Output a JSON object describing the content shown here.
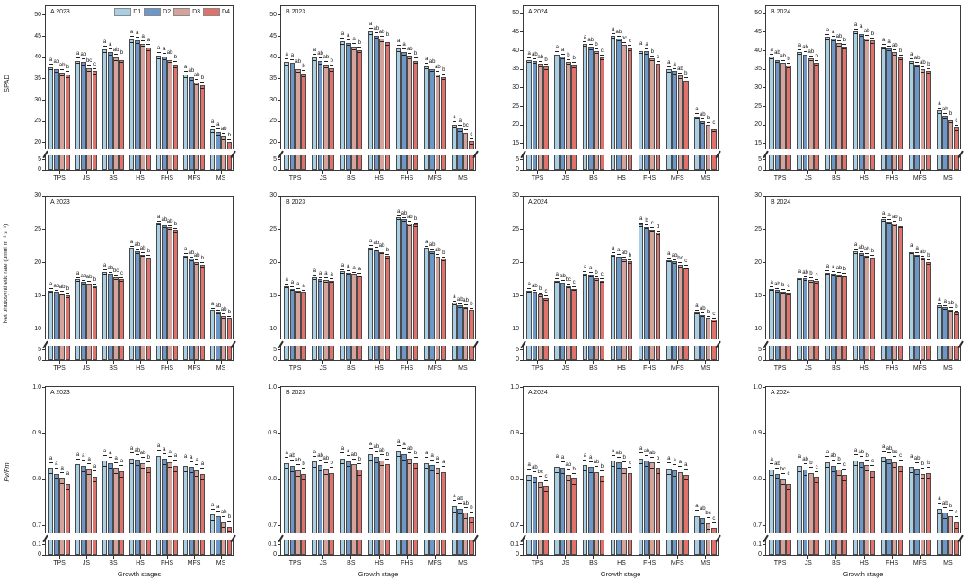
{
  "legend": {
    "labels": [
      "D1",
      "D2",
      "D3",
      "D4"
    ],
    "colors": [
      "#a9cfe5",
      "#6d96c9",
      "#d6a29c",
      "#e1716b"
    ]
  },
  "stages": [
    "TPS",
    "JS",
    "BS",
    "HS",
    "FHS",
    "MFS",
    "MS"
  ],
  "rows": [
    {
      "ylabel": "SPAD",
      "err": 0.8,
      "ticks_lower": [
        [
          0,
          "0"
        ],
        [
          5,
          "5"
        ]
      ],
      "ticks_upper": [
        [
          20,
          "20"
        ],
        [
          25,
          "25"
        ],
        [
          30,
          "30"
        ],
        [
          35,
          "35"
        ],
        [
          40,
          "40"
        ],
        [
          45,
          "45"
        ],
        [
          50,
          "50"
        ]
      ],
      "ymap": {
        "lo": 7,
        "u0": 18.5,
        "u1": 52.5
      }
    },
    {
      "ylabel": "Net photosynthetic rate (μmol m⁻² s⁻¹)",
      "err": 0.35,
      "ticks_lower": [
        [
          0,
          "0"
        ],
        [
          5,
          "5"
        ]
      ],
      "ticks_upper": [
        [
          10,
          "10"
        ],
        [
          15,
          "15"
        ],
        [
          20,
          "20"
        ],
        [
          25,
          "25"
        ],
        [
          30,
          "30"
        ]
      ],
      "ymap": {
        "lo": 7,
        "u0": 8.5,
        "u1": 30.2
      }
    },
    {
      "ylabel": "Fv/Fm",
      "err": 0.013,
      "ticks_lower": [
        [
          0,
          "0"
        ],
        [
          0.1,
          "0.1"
        ]
      ],
      "ticks_upper": [
        [
          0.7,
          "0.7"
        ],
        [
          0.8,
          "0.8"
        ],
        [
          0.9,
          "0.9"
        ],
        [
          1.0,
          "1.0"
        ]
      ],
      "ymap": {
        "lo": 0.14,
        "u0": 0.683,
        "u1": 1.005
      }
    }
  ],
  "chart_data": [
    {
      "type": "bar",
      "row": 0,
      "title": "A 2023",
      "legend": true,
      "xtitle": null,
      "groups": [
        [
          37.8,
          37.3,
          36.5,
          36.0
        ],
        [
          39.3,
          39.0,
          37.5,
          36.8
        ],
        [
          42.0,
          41.3,
          40.0,
          39.5
        ],
        [
          44.3,
          44.0,
          43.3,
          42.4
        ],
        [
          40.5,
          40.2,
          39.5,
          38.3
        ],
        [
          36.0,
          35.3,
          34.2,
          33.5
        ],
        [
          23.2,
          22.5,
          21.5,
          20.1
        ]
      ],
      "letters": [
        [
          "a",
          "ab",
          "ab",
          "b"
        ],
        [
          "a",
          "ab",
          "bc",
          "c"
        ],
        [
          "a",
          "a",
          "ab",
          "b"
        ],
        [
          "a",
          "a",
          "a",
          "a"
        ],
        [
          "a",
          "a",
          "ab",
          "b"
        ],
        [
          "a",
          "ab",
          "ab",
          "b"
        ],
        [
          "a",
          "a",
          "ab",
          "b"
        ]
      ]
    },
    {
      "type": "bar",
      "row": 0,
      "title": "B 2023",
      "legend": false,
      "xtitle": null,
      "groups": [
        [
          39.0,
          38.8,
          37.3,
          36.3
        ],
        [
          40.0,
          39.2,
          38.3,
          37.5
        ],
        [
          43.8,
          43.5,
          42.6,
          41.8
        ],
        [
          46.2,
          45.2,
          44.4,
          43.6
        ],
        [
          42.2,
          41.3,
          40.4,
          39.3
        ],
        [
          38.0,
          37.4,
          36.1,
          35.5
        ],
        [
          24.2,
          23.4,
          22.3,
          20.3
        ]
      ],
      "letters": [
        [
          "a",
          "a",
          "ab",
          "b"
        ],
        [
          "a",
          "ab",
          "ab",
          "b"
        ],
        [
          "a",
          "a",
          "a",
          "b"
        ],
        [
          "a",
          "ab",
          "ab",
          "b"
        ],
        [
          "a",
          "a",
          "ab",
          "b"
        ],
        [
          "a",
          "ab",
          "ab",
          "b"
        ],
        [
          "a",
          "a",
          "bc",
          "c"
        ]
      ]
    },
    {
      "type": "bar",
      "row": 0,
      "title": "A 2024",
      "legend": false,
      "xtitle": null,
      "ticks_upper": [
        [
          15,
          "15"
        ],
        [
          20,
          "20"
        ],
        [
          25,
          "25"
        ],
        [
          30,
          "30"
        ],
        [
          35,
          "35"
        ],
        [
          40,
          "40"
        ],
        [
          45,
          "45"
        ],
        [
          50,
          "50"
        ]
      ],
      "ymap": {
        "lo": 7,
        "u0": 13.5,
        "u1": 52.5
      },
      "groups": [
        [
          37.5,
          37.2,
          36.4,
          35.7
        ],
        [
          39.0,
          38.5,
          37.0,
          36.2
        ],
        [
          41.8,
          41.0,
          39.9,
          38.2
        ],
        [
          44.0,
          43.3,
          41.5,
          40.7
        ],
        [
          40.0,
          39.8,
          38.0,
          36.5
        ],
        [
          35.0,
          34.5,
          33.3,
          32.0
        ],
        [
          22.3,
          21.0,
          20.0,
          18.8
        ]
      ],
      "letters": [
        [
          "a",
          "ab",
          "ab",
          "b"
        ],
        [
          "a",
          "a",
          "b",
          "b"
        ],
        [
          "a",
          "ab",
          "b",
          "c"
        ],
        [
          "a",
          "ab",
          "bc",
          "c"
        ],
        [
          "a",
          "a",
          "b",
          "c"
        ],
        [
          "a",
          "a",
          "ab",
          "b"
        ],
        [
          "a",
          "ab",
          "b",
          "c"
        ]
      ]
    },
    {
      "type": "bar",
      "row": 0,
      "title": "B 2024",
      "legend": false,
      "xtitle": null,
      "ticks_upper": [
        [
          15,
          "15"
        ],
        [
          20,
          "20"
        ],
        [
          25,
          "25"
        ],
        [
          30,
          "30"
        ],
        [
          35,
          "35"
        ],
        [
          40,
          "40"
        ],
        [
          45,
          "45"
        ],
        [
          50,
          "50"
        ]
      ],
      "ymap": {
        "lo": 7,
        "u0": 13.5,
        "u1": 52.5
      },
      "groups": [
        [
          38.5,
          37.6,
          36.7,
          36.0
        ],
        [
          39.7,
          39.0,
          38.0,
          36.8
        ],
        [
          43.7,
          43.3,
          42.0,
          41.1
        ],
        [
          45.2,
          44.6,
          43.4,
          42.7
        ],
        [
          41.1,
          40.6,
          39.6,
          38.2
        ],
        [
          37.2,
          36.3,
          35.0,
          34.6
        ],
        [
          23.8,
          22.4,
          21.3,
          19.2
        ]
      ],
      "letters": [
        [
          "a",
          "ab",
          "ab",
          "b"
        ],
        [
          "a",
          "ab",
          "ab",
          "b"
        ],
        [
          "a",
          "a",
          "ab",
          "b"
        ],
        [
          "a",
          "a",
          "ab",
          "b"
        ],
        [
          "a",
          "a",
          "ab",
          "b"
        ],
        [
          "a",
          "ab",
          "ab",
          "b"
        ],
        [
          "a",
          "ab",
          "b",
          "c"
        ]
      ]
    },
    {
      "type": "bar",
      "row": 1,
      "title": "A 2023",
      "legend": false,
      "xtitle": null,
      "groups": [
        [
          15.8,
          15.6,
          15.4,
          15.1
        ],
        [
          17.5,
          17.1,
          16.9,
          16.5
        ],
        [
          18.6,
          18.3,
          17.8,
          17.5
        ],
        [
          22.2,
          21.7,
          21.2,
          20.8
        ],
        [
          26.0,
          25.6,
          25.3,
          24.9
        ],
        [
          21.1,
          20.6,
          20.1,
          19.7
        ],
        [
          12.9,
          12.6,
          12.0,
          11.7
        ]
      ],
      "letters": [
        [
          "a",
          "ab",
          "ab",
          "b"
        ],
        [
          "a",
          "ab",
          "ab",
          "b"
        ],
        [
          "a",
          "ab",
          "bc",
          "c"
        ],
        [
          "a",
          "ab",
          "ab",
          "b"
        ],
        [
          "a",
          "ab",
          "ab",
          "b"
        ],
        [
          "a",
          "ab",
          "ab",
          "b"
        ],
        [
          "a",
          "ab",
          "ab",
          "b"
        ]
      ]
    },
    {
      "type": "bar",
      "row": 1,
      "title": "B 2023",
      "legend": false,
      "xtitle": null,
      "groups": [
        [
          16.5,
          16.1,
          15.8,
          15.6
        ],
        [
          17.8,
          17.5,
          17.4,
          17.3
        ],
        [
          18.7,
          18.5,
          18.3,
          18.1
        ],
        [
          22.3,
          22.0,
          21.6,
          21.0
        ],
        [
          26.8,
          26.5,
          25.9,
          25.7
        ],
        [
          22.2,
          21.7,
          20.9,
          20.6
        ],
        [
          14.0,
          13.6,
          13.4,
          12.9
        ]
      ],
      "letters": [
        [
          "a",
          "a",
          "a",
          "a"
        ],
        [
          "a",
          "a",
          "a",
          "a"
        ],
        [
          "a",
          "a",
          "a",
          "a"
        ],
        [
          "a",
          "ab",
          "ab",
          "b"
        ],
        [
          "a",
          "ab",
          "ab",
          "b"
        ],
        [
          "a",
          "ab",
          "ab",
          "b"
        ],
        [
          "a",
          "ab",
          "ab",
          "b"
        ]
      ]
    },
    {
      "type": "bar",
      "row": 1,
      "title": "A 2024",
      "legend": false,
      "xtitle": null,
      "groups": [
        [
          15.8,
          15.6,
          15.2,
          14.7
        ],
        [
          17.3,
          17.0,
          16.5,
          16.1
        ],
        [
          18.4,
          18.2,
          17.6,
          17.3
        ],
        [
          21.2,
          20.9,
          20.5,
          20.2
        ],
        [
          25.7,
          25.4,
          25.0,
          24.5
        ],
        [
          20.4,
          20.2,
          19.7,
          19.3
        ],
        [
          12.6,
          12.2,
          11.7,
          11.4
        ]
      ],
      "letters": [
        [
          "a",
          "ab",
          "b",
          "c"
        ],
        [
          "a",
          "ab",
          "bc",
          "c"
        ],
        [
          "a",
          "a",
          "b",
          "c"
        ],
        [
          "a",
          "a",
          "ab",
          "b"
        ],
        [
          "a",
          "b",
          "c",
          "d"
        ],
        [
          "a",
          "ab",
          "bc",
          "c"
        ],
        [
          "a",
          "ab",
          "b",
          "c"
        ]
      ]
    },
    {
      "type": "bar",
      "row": 1,
      "title": "B 2024",
      "legend": false,
      "xtitle": null,
      "groups": [
        [
          16.1,
          15.9,
          15.7,
          15.5
        ],
        [
          17.7,
          17.6,
          17.4,
          17.2
        ],
        [
          18.5,
          18.4,
          18.2,
          18.1
        ],
        [
          21.7,
          21.4,
          21.1,
          20.8
        ],
        [
          26.5,
          26.2,
          25.9,
          25.5
        ],
        [
          21.6,
          21.2,
          20.7,
          20.1
        ],
        [
          13.6,
          13.3,
          13.0,
          12.5
        ]
      ],
      "letters": [
        [
          "a",
          "ab",
          "b",
          "c"
        ],
        [
          "a",
          "ab",
          "b",
          "c"
        ],
        [
          "a",
          "a",
          "ab",
          "b"
        ],
        [
          "a",
          "ab",
          "ab",
          "b"
        ],
        [
          "a",
          "a",
          "ab",
          "b"
        ],
        [
          "a",
          "a",
          "ab",
          "b"
        ],
        [
          "a",
          "a",
          "ab",
          "b"
        ]
      ]
    },
    {
      "type": "bar",
      "row": 2,
      "title": "A 2023",
      "legend": false,
      "xtitle": "Growth stages",
      "groups": [
        [
          0.825,
          0.813,
          0.803,
          0.791
        ],
        [
          0.833,
          0.83,
          0.823,
          0.807
        ],
        [
          0.841,
          0.836,
          0.825,
          0.818
        ],
        [
          0.846,
          0.843,
          0.836,
          0.827
        ],
        [
          0.852,
          0.845,
          0.838,
          0.83
        ],
        [
          0.829,
          0.827,
          0.82,
          0.812
        ],
        [
          0.724,
          0.72,
          0.708,
          0.698
        ]
      ],
      "letters": [
        [
          "a",
          "a",
          "a",
          "a"
        ],
        [
          "a",
          "a",
          "a",
          "a"
        ],
        [
          "a",
          "a",
          "a",
          "a"
        ],
        [
          "a",
          "ab",
          "ab",
          "b"
        ],
        [
          "a",
          "a",
          "a",
          "a"
        ],
        [
          "a",
          "a",
          "a",
          "a"
        ],
        [
          "a",
          "a",
          "ab",
          "b"
        ]
      ]
    },
    {
      "type": "bar",
      "row": 2,
      "title": "B 2023",
      "legend": false,
      "xtitle": "Growth stage",
      "groups": [
        [
          0.836,
          0.83,
          0.82,
          0.812
        ],
        [
          0.839,
          0.831,
          0.824,
          0.815
        ],
        [
          0.846,
          0.84,
          0.833,
          0.822
        ],
        [
          0.855,
          0.849,
          0.842,
          0.833
        ],
        [
          0.862,
          0.855,
          0.846,
          0.836
        ],
        [
          0.836,
          0.831,
          0.825,
          0.816
        ],
        [
          0.742,
          0.737,
          0.728,
          0.718
        ]
      ],
      "letters": [
        [
          "a",
          "ab",
          "ab",
          "b"
        ],
        [
          "a",
          "ab",
          "ab",
          "b"
        ],
        [
          "a",
          "a",
          "ab",
          "b"
        ],
        [
          "a",
          "ab",
          "ab",
          "b"
        ],
        [
          "a",
          "a",
          "ab",
          "b"
        ],
        [
          "a",
          "a",
          "a",
          "a"
        ],
        [
          "a",
          "ab",
          "ab",
          "b"
        ]
      ]
    },
    {
      "type": "bar",
      "row": 2,
      "title": "A 2024",
      "legend": false,
      "xtitle": "Growth stage",
      "groups": [
        [
          0.81,
          0.806,
          0.795,
          0.786
        ],
        [
          0.828,
          0.826,
          0.81,
          0.802
        ],
        [
          0.831,
          0.827,
          0.816,
          0.808
        ],
        [
          0.841,
          0.837,
          0.826,
          0.815
        ],
        [
          0.846,
          0.841,
          0.837,
          0.825
        ],
        [
          0.824,
          0.82,
          0.816,
          0.811
        ],
        [
          0.721,
          0.716,
          0.705,
          0.695
        ]
      ],
      "letters": [
        [
          "a",
          "ab",
          "bc",
          "c"
        ],
        [
          "a",
          "a",
          "ab",
          "b"
        ],
        [
          "a",
          "a",
          "ab",
          "b"
        ],
        [
          "a",
          "ab",
          "b",
          "c"
        ],
        [
          "a",
          "ab",
          "ab",
          "b"
        ],
        [
          "a",
          "a",
          "a",
          "a"
        ],
        [
          "a",
          "ab",
          "bc",
          "c"
        ]
      ]
    },
    {
      "type": "bar",
      "row": 2,
      "title": "A 2024",
      "legend": false,
      "xtitle": "Growth stage",
      "groups": [
        [
          0.822,
          0.813,
          0.801,
          0.791
        ],
        [
          0.829,
          0.822,
          0.815,
          0.806
        ],
        [
          0.838,
          0.83,
          0.822,
          0.81
        ],
        [
          0.842,
          0.838,
          0.831,
          0.818
        ],
        [
          0.85,
          0.846,
          0.838,
          0.83
        ],
        [
          0.828,
          0.824,
          0.813,
          0.814
        ],
        [
          0.737,
          0.728,
          0.721,
          0.707
        ]
      ],
      "letters": [
        [
          "a",
          "ab",
          "bc",
          "c"
        ],
        [
          "a",
          "ab",
          "b",
          "c"
        ],
        [
          "a",
          "ab",
          "b",
          "c"
        ],
        [
          "a",
          "ab",
          "b",
          "c"
        ],
        [
          "a",
          "ab",
          "bc",
          "c"
        ],
        [
          "a",
          "ab",
          "b",
          "b"
        ],
        [
          "a",
          "ab",
          "b",
          "c"
        ]
      ]
    }
  ]
}
